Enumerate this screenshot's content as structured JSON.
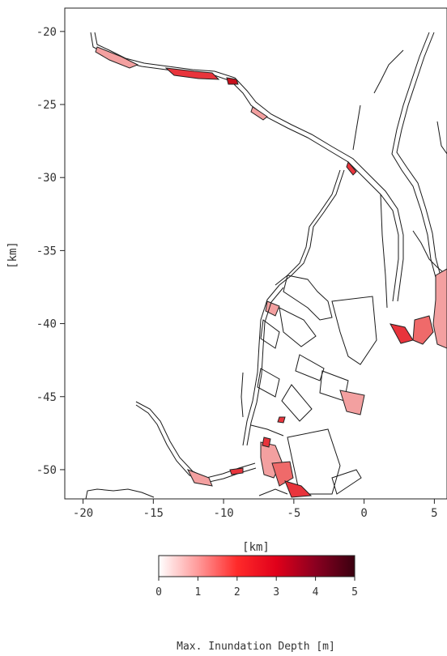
{
  "chart_data": {
    "type": "map",
    "xlabel": "[km]",
    "ylabel": "[km]",
    "xlim": [
      -21.3,
      5.9
    ],
    "ylim": [
      -52.0,
      -18.4
    ],
    "xticks": [
      -20,
      -15,
      -10,
      -5,
      0,
      5
    ],
    "yticks": [
      -20,
      -25,
      -30,
      -35,
      -40,
      -45,
      -50
    ],
    "xtick_labels": [
      "-20",
      "-15",
      "-10",
      "-5",
      "0",
      "5"
    ],
    "ytick_labels": [
      "-20",
      "-25",
      "-30",
      "-35",
      "-40",
      "-45",
      "-50"
    ],
    "colorbar": {
      "label": "Max. Inundation Depth [m]",
      "min": 0,
      "max": 5,
      "ticks": [
        0,
        1,
        2,
        3,
        4,
        5
      ],
      "tick_labels": [
        "0",
        "1",
        "2",
        "3",
        "4",
        "5"
      ],
      "colors": [
        "#ffffff",
        "#ff9a9a",
        "#ff2a2a",
        "#e0001a",
        "#8a0020",
        "#3a0010"
      ]
    },
    "grid": false
  }
}
